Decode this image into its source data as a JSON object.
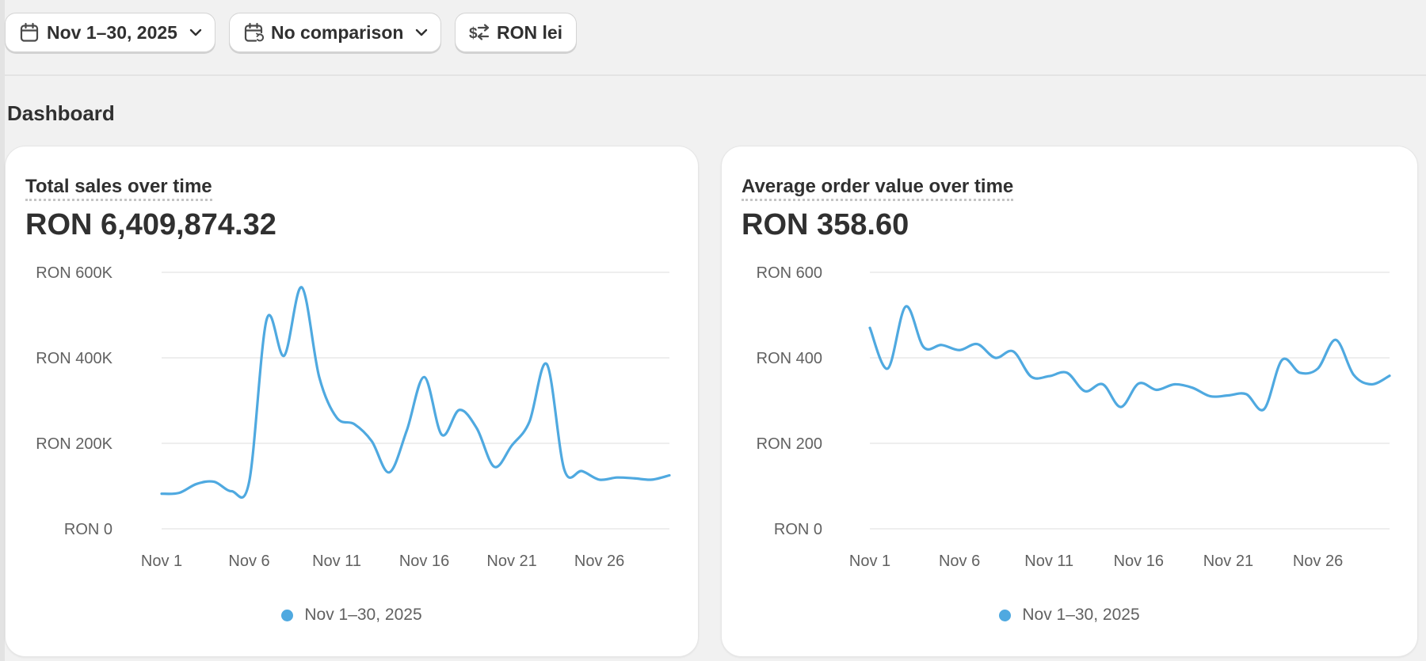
{
  "toolbar": {
    "date_label": "Nov 1–30, 2025",
    "comparison_label": "No comparison",
    "currency_label": "RON lei"
  },
  "dashboard_title": "Dashboard",
  "colors": {
    "series": "#4fa9e0",
    "grid": "#e8e8e8",
    "axis_text": "#616161"
  },
  "cards": {
    "sales": {
      "title": "Total sales over time",
      "value": "RON 6,409,874.32",
      "legend": "Nov 1–30, 2025"
    },
    "aov": {
      "title": "Average order value over time",
      "value": "RON 358.60",
      "legend": "Nov 1–30, 2025"
    }
  },
  "chart_data": [
    {
      "type": "line",
      "title": "Total sales over time",
      "x_tick_labels": [
        "Nov 1",
        "Nov 6",
        "Nov 11",
        "Nov 16",
        "Nov 21",
        "Nov 26"
      ],
      "y_tick_labels": [
        "RON 600K",
        "RON 400K",
        "RON 200K",
        "RON 0"
      ],
      "y_ticks": [
        600000,
        400000,
        200000,
        0
      ],
      "ylim": [
        0,
        600000
      ],
      "grid": true,
      "legend_position": "bottom",
      "series": [
        {
          "name": "Nov 1–30, 2025",
          "x": [
            "Nov 1",
            "Nov 2",
            "Nov 3",
            "Nov 4",
            "Nov 5",
            "Nov 6",
            "Nov 7",
            "Nov 8",
            "Nov 9",
            "Nov 10",
            "Nov 11",
            "Nov 12",
            "Nov 13",
            "Nov 14",
            "Nov 15",
            "Nov 16",
            "Nov 17",
            "Nov 18",
            "Nov 19",
            "Nov 20",
            "Nov 21",
            "Nov 22",
            "Nov 23",
            "Nov 24",
            "Nov 25",
            "Nov 26",
            "Nov 27",
            "Nov 28",
            "Nov 29",
            "Nov 30"
          ],
          "values": [
            82000,
            84000,
            105000,
            110000,
            88000,
            110000,
            490000,
            405000,
            565000,
            355000,
            260000,
            245000,
            205000,
            132000,
            230000,
            355000,
            220000,
            278000,
            235000,
            145000,
            195000,
            250000,
            385000,
            138000,
            135000,
            115000,
            120000,
            118000,
            115000,
            125000
          ]
        }
      ]
    },
    {
      "type": "line",
      "title": "Average order value over time",
      "x_tick_labels": [
        "Nov 1",
        "Nov 6",
        "Nov 11",
        "Nov 16",
        "Nov 21",
        "Nov 26"
      ],
      "y_tick_labels": [
        "RON 600",
        "RON 400",
        "RON 200",
        "RON 0"
      ],
      "y_ticks": [
        600,
        400,
        200,
        0
      ],
      "ylim": [
        0,
        600
      ],
      "grid": true,
      "legend_position": "bottom",
      "series": [
        {
          "name": "Nov 1–30, 2025",
          "x": [
            "Nov 1",
            "Nov 2",
            "Nov 3",
            "Nov 4",
            "Nov 5",
            "Nov 6",
            "Nov 7",
            "Nov 8",
            "Nov 9",
            "Nov 10",
            "Nov 11",
            "Nov 12",
            "Nov 13",
            "Nov 14",
            "Nov 15",
            "Nov 16",
            "Nov 17",
            "Nov 18",
            "Nov 19",
            "Nov 20",
            "Nov 21",
            "Nov 22",
            "Nov 23",
            "Nov 24",
            "Nov 25",
            "Nov 26",
            "Nov 27",
            "Nov 28",
            "Nov 29",
            "Nov 30"
          ],
          "values": [
            470,
            375,
            520,
            425,
            430,
            418,
            432,
            400,
            415,
            356,
            357,
            365,
            322,
            338,
            285,
            340,
            325,
            338,
            330,
            310,
            312,
            315,
            280,
            395,
            365,
            375,
            442,
            360,
            338,
            358
          ]
        }
      ]
    }
  ]
}
